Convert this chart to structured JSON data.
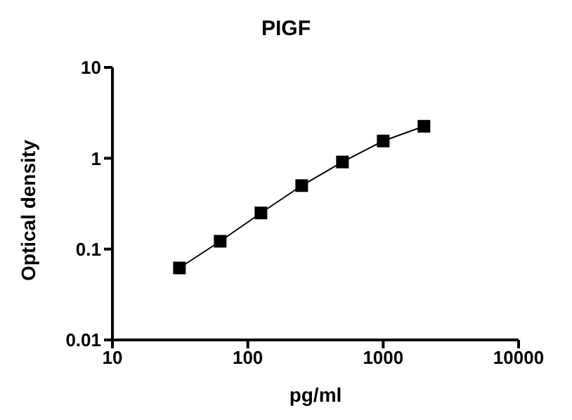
{
  "chart_data": {
    "type": "line",
    "title": "PIGF",
    "xlabel": "pg/ml",
    "ylabel": "Optical density",
    "log": "xy",
    "x": [
      31.25,
      62.5,
      125,
      250,
      500,
      1000,
      2000
    ],
    "series": [
      {
        "color": "#000000",
        "values": [
          0.062,
          0.122,
          0.25,
          0.5,
          0.91,
          1.55,
          2.25
        ]
      }
    ],
    "xlim": [
      10,
      10000
    ],
    "xticks": [
      10,
      100,
      1000,
      10000
    ],
    "ylim": [
      0.01,
      10
    ],
    "yticks": [
      0.01,
      0.1,
      1,
      10
    ],
    "grid": false,
    "legend": false,
    "marker": "square",
    "line_style": "solid"
  }
}
